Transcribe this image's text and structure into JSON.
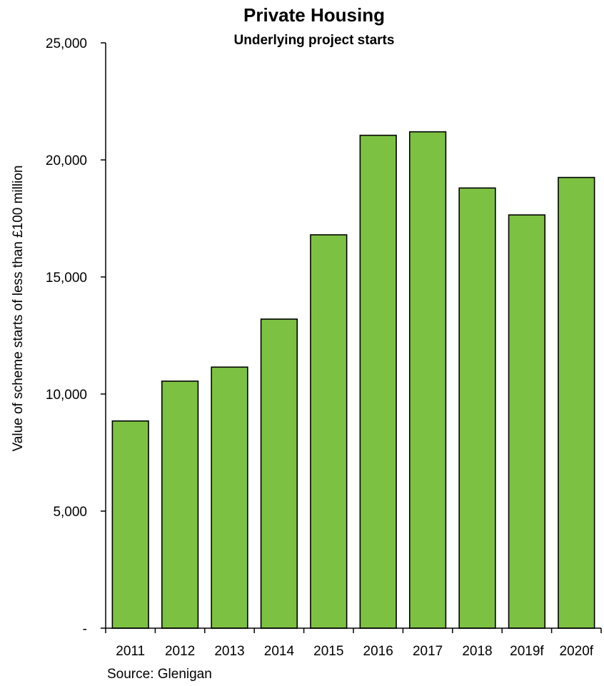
{
  "chart_data": {
    "type": "bar",
    "title": "Private Housing",
    "subtitle": "Underlying project starts",
    "ylabel": "Value of scheme starts of less than £100 million",
    "xlabel": "",
    "source": "Source: Glenigan",
    "ylim": [
      0,
      25000
    ],
    "yticks": [
      {
        "value": 0,
        "label": "-"
      },
      {
        "value": 5000,
        "label": "5,000"
      },
      {
        "value": 10000,
        "label": "10,000"
      },
      {
        "value": 15000,
        "label": "15,000"
      },
      {
        "value": 20000,
        "label": "20,000"
      },
      {
        "value": 25000,
        "label": "25,000"
      }
    ],
    "categories": [
      "2011",
      "2012",
      "2013",
      "2014",
      "2015",
      "2016",
      "2017",
      "2018",
      "2019f",
      "2020f"
    ],
    "values": [
      8850,
      10550,
      11150,
      13200,
      16800,
      21050,
      21200,
      18800,
      17650,
      19250
    ],
    "grid": false,
    "legend": "none",
    "colors": {
      "bar_fill": "#7dc142",
      "bar_stroke": "#000000",
      "axis": "#000000"
    }
  }
}
